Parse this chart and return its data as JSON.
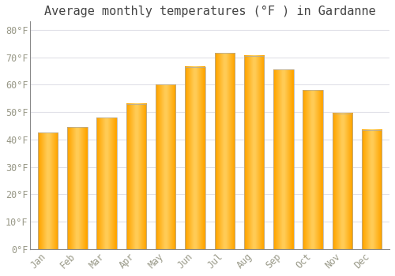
{
  "title": "Average monthly temperatures (°F ) in Gardanne",
  "months": [
    "Jan",
    "Feb",
    "Mar",
    "Apr",
    "May",
    "Jun",
    "Jul",
    "Aug",
    "Sep",
    "Oct",
    "Nov",
    "Dec"
  ],
  "values": [
    42.5,
    44.5,
    48,
    53,
    60,
    66.5,
    71.5,
    70.5,
    65.5,
    58,
    49.5,
    43.5
  ],
  "bar_color_left": "#FFA500",
  "bar_color_center": "#FFD060",
  "bar_color_right": "#FFA500",
  "background_color": "#FFFFFF",
  "grid_color": "#E0E0E8",
  "text_color": "#999988",
  "title_color": "#444444",
  "axis_color": "#888888",
  "ylim": [
    0,
    83
  ],
  "yticks": [
    0,
    10,
    20,
    30,
    40,
    50,
    60,
    70,
    80
  ],
  "ytick_labels": [
    "0°F",
    "10°F",
    "20°F",
    "30°F",
    "40°F",
    "50°F",
    "60°F",
    "70°F",
    "80°F"
  ],
  "title_fontsize": 11,
  "tick_fontsize": 8.5,
  "font_family": "monospace"
}
